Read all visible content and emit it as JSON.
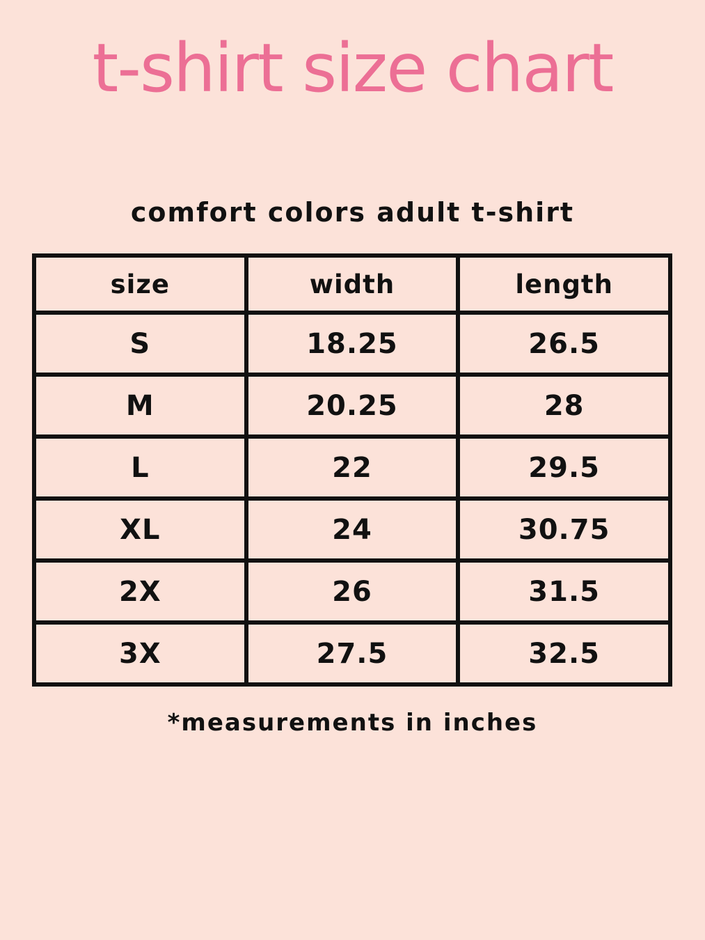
{
  "title": "t-shirt size chart",
  "subtitle": "comfort colors adult t-shirt",
  "table": {
    "headers": [
      "size",
      "width",
      "length"
    ],
    "rows": [
      [
        "S",
        "18.25",
        "26.5"
      ],
      [
        "M",
        "20.25",
        "28"
      ],
      [
        "L",
        "22",
        "29.5"
      ],
      [
        "XL",
        "24",
        "30.75"
      ],
      [
        "2X",
        "26",
        "31.5"
      ],
      [
        "3X",
        "27.5",
        "32.5"
      ]
    ]
  },
  "footnote": "*measurements in inches",
  "colors": {
    "background": "#fce2d9",
    "title": "#ec6f95",
    "text": "#111111",
    "border": "#111111"
  }
}
